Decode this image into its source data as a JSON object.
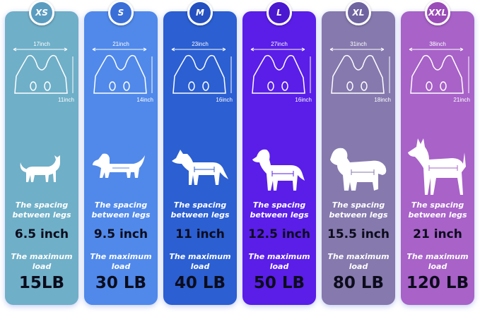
{
  "sizes": [
    {
      "size": "XS",
      "width": "17inch",
      "height": "11inch",
      "spacing_label": "The spacing between legs",
      "spacing": "6.5 inch",
      "load_label": "The maximum load",
      "load": "15LB",
      "animal": "cat-icon",
      "color": "#6fafc8",
      "badge_color": "#5a9cc0"
    },
    {
      "size": "S",
      "width": "21inch",
      "height": "14inch",
      "spacing_label": "The spacing between legs",
      "spacing": "9.5 inch",
      "load_label": "The maximum load",
      "load": "30 LB",
      "animal": "dachshund-icon",
      "color": "#5089ea",
      "badge_color": "#3a6fd8"
    },
    {
      "size": "M",
      "width": "23inch",
      "height": "16inch",
      "spacing_label": "The spacing between legs",
      "spacing": "11 inch",
      "load_label": "The maximum load",
      "load": "40 LB",
      "animal": "medium-dog-icon",
      "color": "#2b5fd2",
      "badge_color": "#2450c0"
    },
    {
      "size": "L",
      "width": "27inch",
      "height": "16inch",
      "spacing_label": "The spacing between legs",
      "spacing": "12.5 inch",
      "load_label": "The maximum load",
      "load": "50 LB",
      "animal": "retriever-icon",
      "color": "#5a1ee8",
      "badge_color": "#4a18d0"
    },
    {
      "size": "XL",
      "width": "31inch",
      "height": "18inch",
      "spacing_label": "The spacing between legs",
      "spacing": "15.5 inch",
      "load_label": "The maximum load",
      "load": "80 LB",
      "animal": "long-hair-dog-icon",
      "color": "#8679ae",
      "badge_color": "#6f64a0"
    },
    {
      "size": "XXL",
      "width": "38inch",
      "height": "21inch",
      "spacing_label": "The spacing between legs",
      "spacing": "21 inch",
      "load_label": "The maximum load",
      "load": "120 LB",
      "animal": "doberman-icon",
      "color": "#a862c8",
      "badge_color": "#9a4cb8"
    }
  ]
}
